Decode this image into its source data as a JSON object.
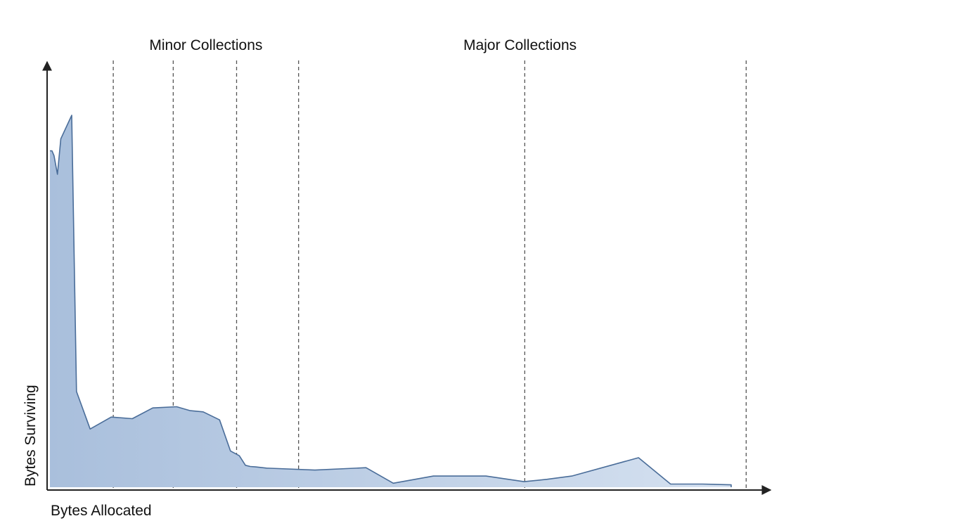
{
  "chart_data": {
    "type": "area",
    "title": "",
    "xlabel": "Bytes Allocated",
    "ylabel": "Bytes Surviving",
    "xlim": [
      0,
      100
    ],
    "ylim": [
      0,
      100
    ],
    "grid": false,
    "legend": "none",
    "series": [
      {
        "x": [
          0.0,
          0.3,
          0.6,
          1.1,
          1.6,
          3.2,
          3.9,
          5.9,
          9.0,
          12.1,
          15.1,
          18.6,
          20.6,
          22.5,
          24.9,
          26.5,
          27.8,
          28.7,
          29.4,
          30.2,
          31.8,
          38.9,
          46.4,
          50.4,
          56.3,
          64.0,
          69.6,
          73.0,
          76.6,
          86.4,
          91.1,
          95.8,
          100.0,
          100.0
        ],
        "y": [
          84.4,
          84.4,
          83.2,
          78.5,
          87.4,
          93.3,
          24.0,
          14.6,
          17.6,
          17.2,
          19.9,
          20.2,
          19.2,
          18.9,
          16.9,
          9.1,
          7.9,
          5.5,
          5.2,
          5.1,
          4.8,
          4.3,
          4.9,
          1.0,
          2.8,
          2.8,
          1.4,
          2.0,
          2.8,
          7.4,
          0.8,
          0.8,
          0.6,
          0.0
        ]
      }
    ],
    "vertical_divisions": [
      9.3,
      18.1,
      27.4,
      36.5,
      69.7,
      102.2
    ],
    "annotations": [
      {
        "text": "Minor Collections",
        "x": 22.9
      },
      {
        "text": "Major Collections",
        "x": 69.0
      }
    ],
    "colors": {
      "area_fill_top": "#a9bfdc",
      "area_fill_bottom": "#d5e1f0",
      "line": "#4a6d99",
      "axis": "#222222",
      "divider": "#555555",
      "text": "#111111"
    }
  }
}
